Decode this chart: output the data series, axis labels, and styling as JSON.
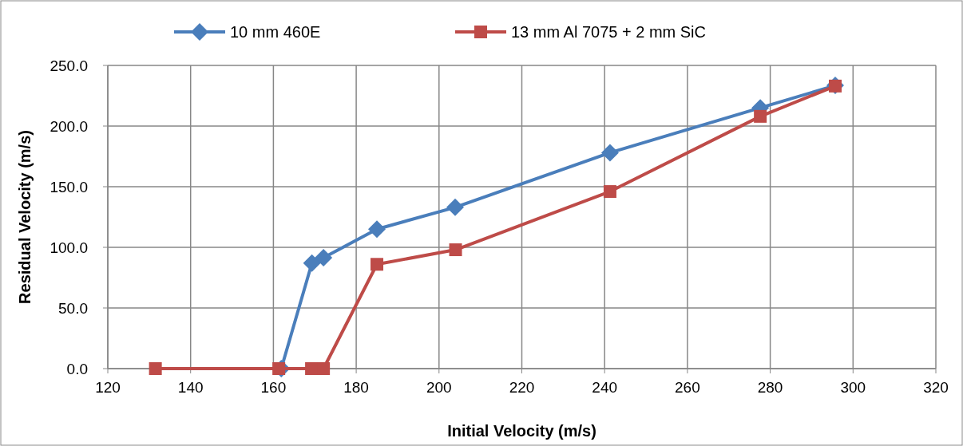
{
  "chart_data": {
    "type": "line",
    "xlabel": "Initial Velocity (m/s)",
    "ylabel": "Residual Velocity (m/s)",
    "xlim": [
      120,
      320
    ],
    "xticks": [
      120,
      140,
      160,
      180,
      200,
      220,
      240,
      260,
      280,
      300,
      320
    ],
    "ylim": [
      0,
      250
    ],
    "yticks": [
      {
        "value": 0,
        "label": "0.0"
      },
      {
        "value": 50,
        "label": "50.0"
      },
      {
        "value": 100,
        "label": "100.0"
      },
      {
        "value": 150,
        "label": "150.0"
      },
      {
        "value": 200,
        "label": "200.0"
      },
      {
        "value": 250,
        "label": "250.0"
      }
    ],
    "grid": true,
    "legend": "top",
    "line_style": "solid",
    "series": [
      {
        "name": "10 mm 460E",
        "color": "#4a7ebb",
        "marker": "diamond",
        "x": [
          161.9,
          169.3,
          172.1,
          185,
          203.9,
          241.3,
          277.6,
          295.7
        ],
        "values": [
          0,
          87,
          91.5,
          115,
          133,
          178,
          215,
          233.5
        ]
      },
      {
        "name": "13 mm Al 7075 + 2 mm SiC",
        "color": "#be4b48",
        "marker": "square",
        "x": [
          131.5,
          161.3,
          169.2,
          172.1,
          185,
          204,
          241.3,
          277.6,
          295.7
        ],
        "values": [
          0,
          0,
          0,
          0,
          86,
          98,
          146,
          208,
          233
        ]
      }
    ]
  }
}
